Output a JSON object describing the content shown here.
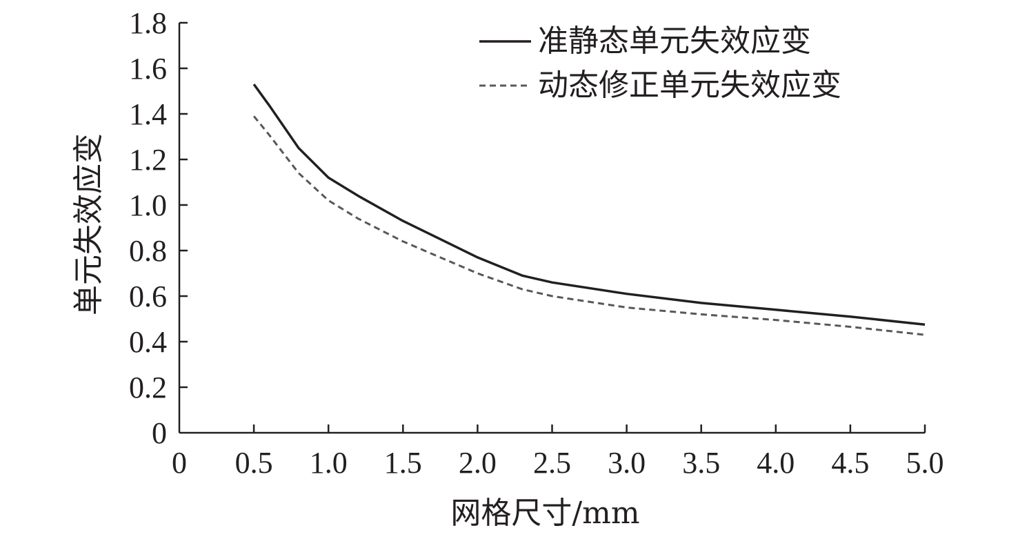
{
  "chart_data": {
    "type": "line",
    "xlabel": "网格尺寸/mm",
    "ylabel": "单元失效应变",
    "xlim": [
      0,
      5.0
    ],
    "ylim": [
      0,
      1.8
    ],
    "x_ticks": [
      "0",
      "0.5",
      "1.0",
      "1.5",
      "2.0",
      "2.5",
      "3.0",
      "3.5",
      "4.0",
      "4.5",
      "5.0"
    ],
    "y_ticks": [
      "0",
      "0.2",
      "0.4",
      "0.6",
      "0.8",
      "1.0",
      "1.2",
      "1.4",
      "1.6",
      "1.8"
    ],
    "grid": false,
    "legend_position": "top-right",
    "series": [
      {
        "name": "准静态单元失效应变",
        "style": "solid",
        "color": "#231f20",
        "x": [
          0.5,
          0.6,
          0.8,
          1.0,
          1.2,
          1.5,
          2.0,
          2.3,
          2.5,
          3.0,
          3.5,
          4.0,
          4.5,
          5.0
        ],
        "y": [
          1.53,
          1.44,
          1.25,
          1.12,
          1.04,
          0.93,
          0.77,
          0.69,
          0.66,
          0.61,
          0.57,
          0.54,
          0.51,
          0.475
        ]
      },
      {
        "name": "动态修正单元失效应变",
        "style": "dashed",
        "color": "#58585a",
        "x": [
          0.5,
          0.6,
          0.8,
          1.0,
          1.2,
          1.5,
          2.0,
          2.3,
          2.5,
          3.0,
          3.5,
          4.0,
          4.5,
          5.0
        ],
        "y": [
          1.39,
          1.31,
          1.14,
          1.02,
          0.94,
          0.84,
          0.7,
          0.63,
          0.6,
          0.55,
          0.52,
          0.495,
          0.465,
          0.43
        ]
      }
    ]
  }
}
